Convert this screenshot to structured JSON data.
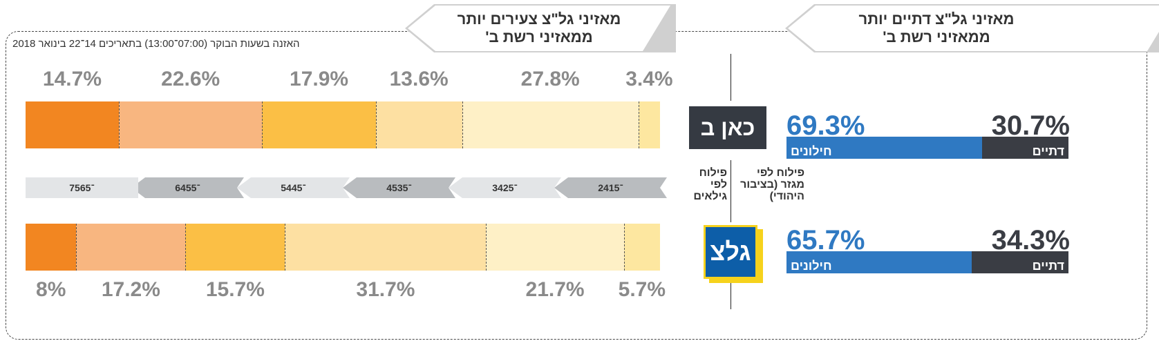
{
  "headers": {
    "young": [
      "מאזיני גל\"צ צעירים יותר",
      "ממאזיני רשת ב'"
    ],
    "religious": [
      "מאזיני גל\"צ דתיים יותר",
      "ממאזיני רשת ב'"
    ]
  },
  "subtitle": "האזנה בשעות הבוקר (07:00־13:00) בתאריכים 14־22 בינואר 2018",
  "age_label": [
    "פילוח",
    "לפי",
    "גילאים"
  ],
  "sector_label": [
    "פילוח לפי",
    "מגזר (בציבור",
    "היהודי)"
  ],
  "logos": {
    "kan": "כאן ב",
    "galatz": "גלצ"
  },
  "colors": {
    "15-24": "#fde7a0",
    "25-34": "#fef0c6",
    "35-44": "#fde0a2",
    "45-54": "#fbbf45",
    "55-64": "#f8b680",
    "65-75": "#f28621",
    "secular": "#2f79c2",
    "religious": "#3a3d44"
  },
  "chart_data": [
    {
      "type": "bar",
      "stacked": true,
      "orientation": "horizontal",
      "categories": [
        "24־15",
        "34־25",
        "45־35",
        "54־45",
        "64־55",
        "75־65"
      ],
      "series": [
        {
          "name": "כאן ב",
          "values": [
            3.4,
            27.8,
            13.6,
            17.9,
            22.6,
            14.7
          ],
          "labels": [
            "3.4%",
            "27.8%",
            "13.6%",
            "17.9%",
            "22.6%",
            "14.7%"
          ]
        },
        {
          "name": "גלצ",
          "values": [
            5.7,
            21.7,
            31.7,
            15.7,
            17.2,
            8
          ],
          "labels": [
            "5.7%",
            "21.7%",
            "31.7%",
            "15.7%",
            "17.2%",
            "8%"
          ]
        }
      ]
    },
    {
      "type": "bar",
      "stacked": true,
      "orientation": "horizontal",
      "categories": [
        "דתיים",
        "חילונים"
      ],
      "series": [
        {
          "name": "כאן ב",
          "values": [
            30.7,
            69.3
          ],
          "labels": [
            "30.7%",
            "69.3%"
          ]
        },
        {
          "name": "גלצ",
          "values": [
            34.3,
            65.7
          ],
          "labels": [
            "34.3%",
            "65.7%"
          ]
        }
      ]
    }
  ]
}
